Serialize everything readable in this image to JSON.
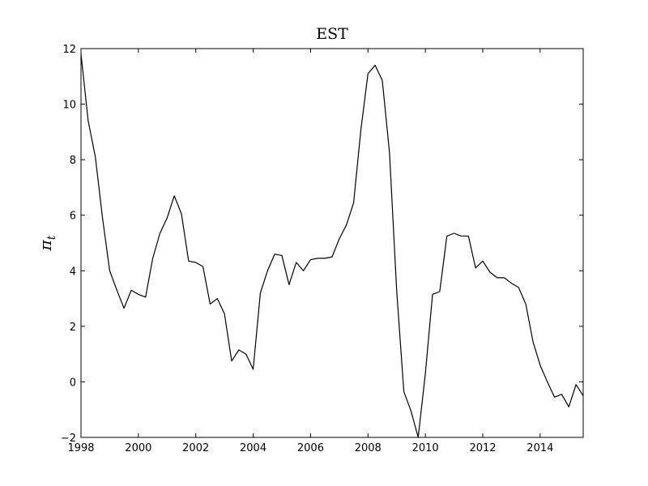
{
  "chart_data": {
    "type": "line",
    "title": "EST",
    "xlabel": "",
    "ylabel": "π",
    "ylabel_subscript": "t",
    "xlim": [
      1998,
      2015.5
    ],
    "ylim": [
      -2,
      12
    ],
    "xticks": [
      1998,
      2000,
      2002,
      2004,
      2006,
      2008,
      2010,
      2012,
      2014
    ],
    "yticks": [
      -2,
      0,
      2,
      4,
      6,
      8,
      10,
      12
    ],
    "grid": false,
    "line_color": "#000000",
    "series": [
      {
        "x": [
          1998.0,
          1998.25,
          1998.5,
          1998.75,
          1999.0,
          1999.25,
          1999.5,
          1999.75,
          2000.0,
          2000.25,
          2000.5,
          2000.75,
          2001.0,
          2001.25,
          2001.5,
          2001.75,
          2002.0,
          2002.25,
          2002.5,
          2002.75,
          2003.0,
          2003.25,
          2003.5,
          2003.75,
          2004.0,
          2004.25,
          2004.5,
          2004.75,
          2005.0,
          2005.25,
          2005.5,
          2005.75,
          2006.0,
          2006.25,
          2006.5,
          2006.75,
          2007.0,
          2007.25,
          2007.5,
          2007.75,
          2008.0,
          2008.25,
          2008.5,
          2008.75,
          2009.0,
          2009.25,
          2009.5,
          2009.75,
          2010.0,
          2010.25,
          2010.5,
          2010.75,
          2011.0,
          2011.25,
          2011.5,
          2011.75,
          2012.0,
          2012.25,
          2012.5,
          2012.75,
          2013.0,
          2013.25,
          2013.5,
          2013.75,
          2014.0,
          2014.25,
          2014.5,
          2014.75,
          2015.0,
          2015.25,
          2015.5
        ],
        "y": [
          11.8,
          9.4,
          8.1,
          5.9,
          4.0,
          3.3,
          2.65,
          3.3,
          3.15,
          3.05,
          4.45,
          5.35,
          5.9,
          6.7,
          6.05,
          4.35,
          4.3,
          4.15,
          2.8,
          3.0,
          2.45,
          0.75,
          1.15,
          1.0,
          0.45,
          3.2,
          4.0,
          4.6,
          4.55,
          3.5,
          4.3,
          4.0,
          4.4,
          4.45,
          4.45,
          4.5,
          5.15,
          5.65,
          6.45,
          9.05,
          11.1,
          11.4,
          10.85,
          8.25,
          3.3,
          -0.35,
          -1.05,
          -2.0,
          0.3,
          3.15,
          3.25,
          5.25,
          5.35,
          5.25,
          5.25,
          4.1,
          4.35,
          3.95,
          3.75,
          3.75,
          3.55,
          3.4,
          2.8,
          1.45,
          0.6,
          0.0,
          -0.55,
          -0.45,
          -0.9,
          -0.1,
          -0.5
        ]
      }
    ]
  }
}
